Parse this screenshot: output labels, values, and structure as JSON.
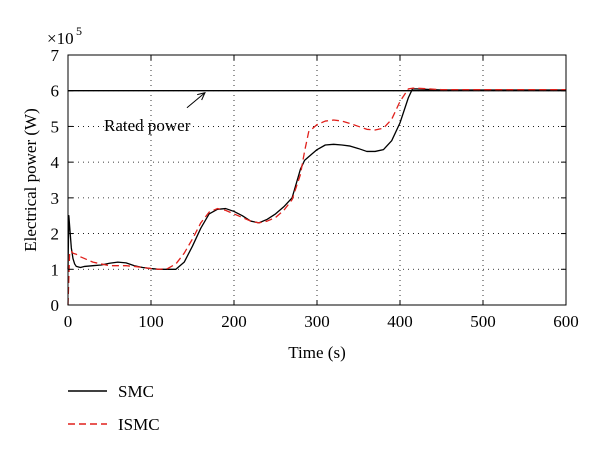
{
  "chart_data": {
    "type": "line",
    "title": "",
    "xlabel": "Time (s)",
    "ylabel": "Electrical power (W)",
    "y_scale_label": "×10",
    "y_scale_exponent": "5",
    "xlim": [
      0,
      600
    ],
    "ylim": [
      0,
      7
    ],
    "xticks": [
      "0",
      "100",
      "200",
      "300",
      "400",
      "500",
      "600"
    ],
    "yticks": [
      "0",
      "1",
      "2",
      "3",
      "4",
      "5",
      "6",
      "7"
    ],
    "grid": true,
    "legend_position": "bottom-left",
    "annotation": {
      "text": "Rated power",
      "points_to": [
        165,
        6.0
      ]
    },
    "series": [
      {
        "name": "Rated power",
        "color": "#000000",
        "dash": "solid",
        "x": [
          0,
          600
        ],
        "y": [
          6.0,
          6.0
        ]
      },
      {
        "name": "SMC",
        "color": "#000000",
        "dash": "solid",
        "x": [
          0,
          1,
          2,
          4,
          6,
          8,
          10,
          15,
          20,
          30,
          40,
          50,
          60,
          70,
          80,
          90,
          100,
          110,
          120,
          130,
          140,
          150,
          160,
          170,
          180,
          190,
          200,
          210,
          220,
          230,
          240,
          250,
          260,
          270,
          280,
          285,
          290,
          300,
          310,
          320,
          330,
          340,
          350,
          360,
          370,
          380,
          390,
          400,
          410,
          415,
          420,
          450,
          500,
          550,
          600
        ],
        "y": [
          1.0,
          2.5,
          2.2,
          1.6,
          1.3,
          1.15,
          1.08,
          1.05,
          1.08,
          1.1,
          1.12,
          1.17,
          1.2,
          1.18,
          1.1,
          1.05,
          1.02,
          1.0,
          1.0,
          1.0,
          1.2,
          1.65,
          2.15,
          2.55,
          2.68,
          2.7,
          2.62,
          2.5,
          2.35,
          2.3,
          2.4,
          2.55,
          2.75,
          3.0,
          3.8,
          4.05,
          4.15,
          4.35,
          4.48,
          4.5,
          4.48,
          4.45,
          4.38,
          4.3,
          4.3,
          4.35,
          4.6,
          5.1,
          5.8,
          6.05,
          6.05,
          6.02,
          6.02,
          6.02,
          6.02
        ]
      },
      {
        "name": "ISMC",
        "color": "#e0201b",
        "dash": "dashed",
        "x": [
          0,
          2,
          4,
          6,
          10,
          15,
          20,
          30,
          40,
          50,
          60,
          70,
          80,
          90,
          100,
          110,
          120,
          130,
          140,
          150,
          160,
          170,
          180,
          190,
          200,
          210,
          220,
          230,
          240,
          250,
          260,
          270,
          280,
          285,
          290,
          300,
          310,
          320,
          330,
          340,
          350,
          360,
          370,
          380,
          390,
          400,
          410,
          415,
          420,
          450,
          500,
          550,
          600
        ],
        "y": [
          0.0,
          1.5,
          1.5,
          1.45,
          1.42,
          1.35,
          1.3,
          1.2,
          1.15,
          1.1,
          1.1,
          1.1,
          1.08,
          1.05,
          1.02,
          1.0,
          1.02,
          1.15,
          1.45,
          1.85,
          2.3,
          2.6,
          2.7,
          2.65,
          2.55,
          2.45,
          2.35,
          2.3,
          2.35,
          2.45,
          2.65,
          2.95,
          3.65,
          4.3,
          4.85,
          5.05,
          5.15,
          5.18,
          5.15,
          5.08,
          5.0,
          4.92,
          4.9,
          4.95,
          5.2,
          5.7,
          6.05,
          6.07,
          6.07,
          6.03,
          6.03,
          6.03,
          6.03
        ]
      }
    ]
  },
  "legend": {
    "items": [
      {
        "label": "SMC",
        "color": "#000000",
        "dash": "solid"
      },
      {
        "label": "ISMC",
        "color": "#e0201b",
        "dash": "dashed"
      }
    ]
  }
}
